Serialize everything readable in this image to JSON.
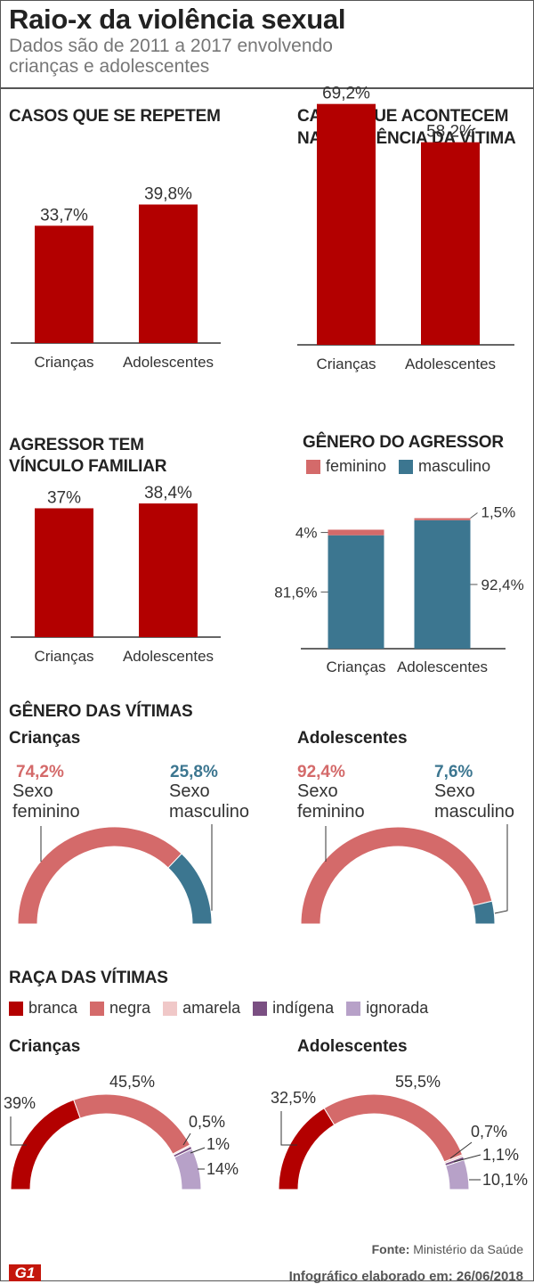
{
  "header": {
    "title": "Raio-x da violência sexual",
    "subtitle_line1": "Dados são de 2011 a 2017 envolvendo",
    "subtitle_line2": "crianças e adolescentes"
  },
  "colors": {
    "dark_red": "#b30000",
    "feminino": "#d46a6a",
    "masculino": "#3c7690",
    "amarela": "#f0c8c8",
    "indigena": "#7a4f82",
    "ignorada": "#b7a1c8",
    "text": "#222222",
    "axis": "#333333"
  },
  "chart_data": [
    {
      "id": "casos_repetem",
      "type": "bar",
      "title": "CASOS QUE SE REPETEM",
      "categories": [
        "Crianças",
        "Adolescentes"
      ],
      "values": [
        33.7,
        39.8
      ],
      "value_labels": [
        "33,7%",
        "39,8%"
      ],
      "unit": "%",
      "ylim": [
        0,
        75
      ]
    },
    {
      "id": "casos_residencia",
      "type": "bar",
      "title_line1": "CASOS QUE ACONTECEM",
      "title_line2": "NA RESIDÊNCIA DA VÍTIMA",
      "categories": [
        "Crianças",
        "Adolescentes"
      ],
      "values": [
        69.2,
        58.2
      ],
      "value_labels": [
        "69,2%",
        "58,2%"
      ],
      "unit": "%",
      "ylim": [
        0,
        75
      ]
    },
    {
      "id": "vinculo_familiar",
      "type": "bar",
      "title_line1": "AGRESSOR TEM",
      "title_line2": "VÍNCULO FAMILIAR",
      "categories": [
        "Crianças",
        "Adolescentes"
      ],
      "values": [
        37,
        38.4
      ],
      "value_labels": [
        "37%",
        "38,4%"
      ],
      "unit": "%",
      "ylim": [
        0,
        75
      ]
    },
    {
      "id": "genero_agressor",
      "type": "bar",
      "stacked": true,
      "title": "GÊNERO DO AGRESSOR",
      "categories": [
        "Crianças",
        "Adolescentes"
      ],
      "series": [
        {
          "name": "masculino",
          "values": [
            81.6,
            92.4
          ],
          "labels": [
            "81,6%",
            "92,4%"
          ]
        },
        {
          "name": "feminino",
          "values": [
            4,
            1.5
          ],
          "labels": [
            "4%",
            "1,5%"
          ]
        }
      ],
      "legend": [
        "feminino",
        "masculino"
      ],
      "ylim": [
        0,
        100
      ]
    },
    {
      "id": "genero_vitimas",
      "type": "pie",
      "shape": "half-donut",
      "title": "GÊNERO DAS VÍTIMAS",
      "groups": [
        {
          "name": "Crianças",
          "slices": [
            {
              "name": "Sexo feminino",
              "line1": "Sexo",
              "line2": "feminino",
              "value": 74.2,
              "label": "74,2%"
            },
            {
              "name": "Sexo masculino",
              "line1": "Sexo",
              "line2": "masculino",
              "value": 25.8,
              "label": "25,8%"
            }
          ]
        },
        {
          "name": "Adolescentes",
          "slices": [
            {
              "name": "Sexo feminino",
              "line1": "Sexo",
              "line2": "feminino",
              "value": 92.4,
              "label": "92,4%"
            },
            {
              "name": "Sexo masculino",
              "line1": "Sexo",
              "line2": "masculino",
              "value": 7.6,
              "label": "7,6%"
            }
          ]
        }
      ]
    },
    {
      "id": "raca_vitimas",
      "type": "pie",
      "shape": "half-donut",
      "title": "RAÇA DAS VÍTIMAS",
      "legend": [
        "branca",
        "negra",
        "amarela",
        "indígena",
        "ignorada"
      ],
      "groups": [
        {
          "name": "Crianças",
          "slices": [
            {
              "name": "branca",
              "value": 39,
              "label": "39%"
            },
            {
              "name": "negra",
              "value": 45.5,
              "label": "45,5%"
            },
            {
              "name": "amarela",
              "value": 0.5,
              "label": "0,5%"
            },
            {
              "name": "indígena",
              "value": 1,
              "label": "1%"
            },
            {
              "name": "ignorada",
              "value": 14,
              "label": "14%"
            }
          ]
        },
        {
          "name": "Adolescentes",
          "slices": [
            {
              "name": "branca",
              "value": 32.5,
              "label": "32,5%"
            },
            {
              "name": "negra",
              "value": 55.5,
              "label": "55,5%"
            },
            {
              "name": "amarela",
              "value": 0.7,
              "label": "0,7%"
            },
            {
              "name": "indígena",
              "value": 1.1,
              "label": "1,1%"
            },
            {
              "name": "ignorada",
              "value": 10.1,
              "label": "10,1%"
            }
          ]
        }
      ]
    }
  ],
  "footer": {
    "source_label": "Fonte:",
    "source_value": "Ministério da Saúde",
    "date_text": "Infográfico elaborado em: 26/06/2018",
    "logo_text": "G1"
  }
}
